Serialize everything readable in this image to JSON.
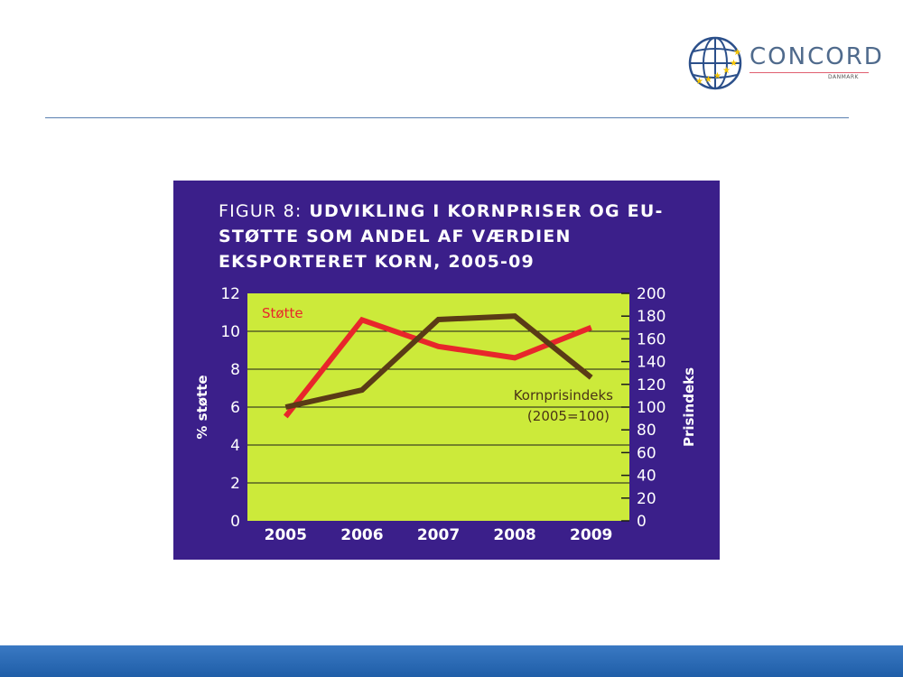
{
  "logo": {
    "name": "CONCORD",
    "sub": "DANMARK"
  },
  "chart_data": {
    "type": "line",
    "title_prefix": "FIGUR 8:",
    "title": "UDVIKLING I KORNPRISER OG EU-STØTTE SOM ANDEL AF VÆRDIEN EKSPORTERET KORN, 2005-09",
    "categories": [
      "2005",
      "2006",
      "2007",
      "2008",
      "2009"
    ],
    "ylabel": "% støtte",
    "y2label": "Prisindeks",
    "ylim": [
      0,
      12
    ],
    "y2lim": [
      0,
      200
    ],
    "yticks": [
      "0",
      "2",
      "4",
      "6",
      "8",
      "10",
      "12"
    ],
    "y2ticks": [
      "0",
      "20",
      "40",
      "60",
      "80",
      "100",
      "120",
      "140",
      "160",
      "180",
      "200"
    ],
    "grid": true,
    "series": [
      {
        "name": "Støtte",
        "axis": "left",
        "color": "#e8262b",
        "values": [
          5.5,
          10.6,
          9.2,
          8.6,
          10.2
        ]
      },
      {
        "name": "Kornprisindeks (2005=100)",
        "axis": "right",
        "color": "#5a3b16",
        "values": [
          100,
          115,
          177,
          180,
          126
        ]
      }
    ],
    "annotations": [
      "Støtte",
      "Kornprisindeks",
      "(2005=100)"
    ],
    "colors": {
      "frame": "#3b1f8a",
      "plot_bg": "#ccea3a"
    }
  }
}
